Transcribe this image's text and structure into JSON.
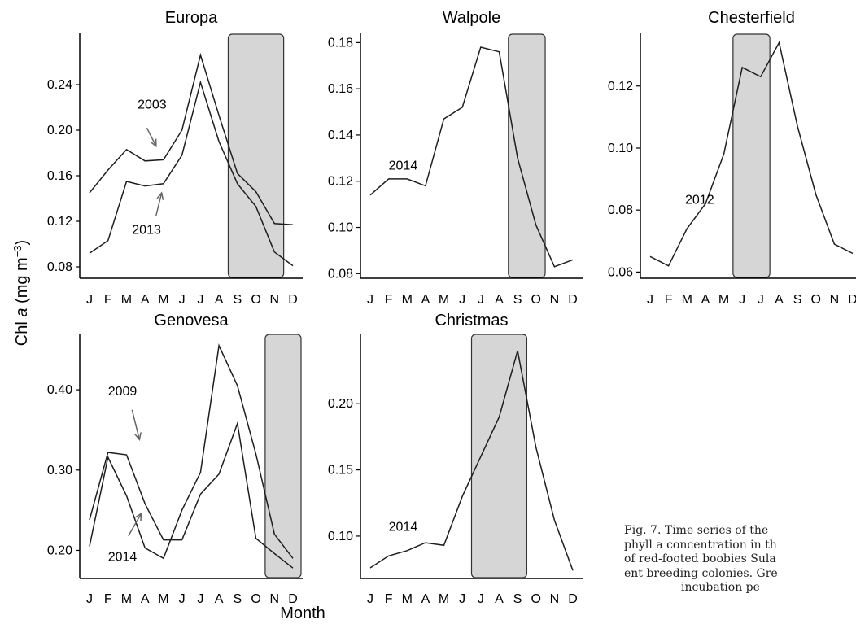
{
  "figure": {
    "ylabel_prefix": "Chl",
    "ylabel_italic": "a",
    "ylabel_suffix": " (mg m",
    "ylabel_sup": "−3",
    "ylabel_close": ")",
    "xlabel": "Month",
    "caption_lines": [
      "Fig. 7. Time series of the",
      "phyll a concentration in th",
      "of red-footed boobies Sula",
      "ent breeding colonies. Gre",
      "incubation pe"
    ]
  },
  "colors": {
    "line": "#1e1e1e",
    "band_fill": "#d6d6d6",
    "band_stroke": "#333333",
    "axis": "#000000",
    "arrow": "#666666"
  },
  "chart_data": [
    {
      "type": "line",
      "title": "Europa",
      "x": [
        "J",
        "F",
        "M",
        "A",
        "M",
        "J",
        "J",
        "A",
        "S",
        "O",
        "N",
        "D"
      ],
      "ylim": [
        0.07,
        0.285
      ],
      "yticks": [
        "0.08",
        "0.12",
        "0.16",
        "0.20",
        "0.24"
      ],
      "ytick_values": [
        0.08,
        0.12,
        0.16,
        0.2,
        0.24
      ],
      "shaded_months": [
        8,
        10
      ],
      "series": [
        {
          "name": "2003",
          "values": [
            0.145,
            0.165,
            0.183,
            0.173,
            0.174,
            0.2,
            0.266,
            0.213,
            0.162,
            0.146,
            0.118,
            0.117
          ]
        },
        {
          "name": "2013",
          "values": [
            0.092,
            0.103,
            0.155,
            0.151,
            0.153,
            0.178,
            0.242,
            0.19,
            0.153,
            0.133,
            0.093,
            0.081
          ]
        }
      ],
      "annotations": [
        {
          "text": "2003",
          "x": 2.6,
          "y": 0.219,
          "arrow_from": [
            3.1,
            0.202
          ],
          "arrow_to": [
            3.6,
            0.186
          ]
        },
        {
          "text": "2013",
          "x": 2.3,
          "y": 0.109,
          "arrow_from": [
            3.6,
            0.125
          ],
          "arrow_to": [
            3.9,
            0.145
          ]
        }
      ]
    },
    {
      "type": "line",
      "title": "Walpole",
      "x": [
        "J",
        "F",
        "M",
        "A",
        "M",
        "J",
        "J",
        "A",
        "S",
        "O",
        "N",
        "D"
      ],
      "ylim": [
        0.078,
        0.184
      ],
      "yticks": [
        "0.08",
        "0.10",
        "0.12",
        "0.14",
        "0.16",
        "0.18"
      ],
      "ytick_values": [
        0.08,
        0.1,
        0.12,
        0.14,
        0.16,
        0.18
      ],
      "shaded_months": [
        8,
        9
      ],
      "series": [
        {
          "name": "2014",
          "values": [
            0.114,
            0.121,
            0.121,
            0.118,
            0.147,
            0.152,
            0.178,
            0.176,
            0.13,
            0.101,
            0.083,
            0.086
          ]
        }
      ],
      "annotations": [
        {
          "text": "2014",
          "x": 1.0,
          "y": 0.125
        }
      ]
    },
    {
      "type": "line",
      "title": "Chesterfield",
      "x": [
        "J",
        "F",
        "M",
        "A",
        "M",
        "J",
        "J",
        "A",
        "S",
        "O",
        "N",
        "D"
      ],
      "ylim": [
        0.058,
        0.137
      ],
      "yticks": [
        "0.06",
        "0.08",
        "0.10",
        "0.12"
      ],
      "ytick_values": [
        0.06,
        0.08,
        0.1,
        0.12
      ],
      "shaded_months": [
        5,
        6
      ],
      "series": [
        {
          "name": "2012",
          "values": [
            0.065,
            0.062,
            0.074,
            0.082,
            0.098,
            0.126,
            0.123,
            0.134,
            0.107,
            0.085,
            0.069,
            0.066
          ]
        }
      ],
      "annotations": [
        {
          "text": "2012",
          "x": 1.9,
          "y": 0.082
        }
      ]
    },
    {
      "type": "line",
      "title": "Genovesa",
      "x": [
        "J",
        "F",
        "M",
        "A",
        "M",
        "J",
        "J",
        "A",
        "S",
        "O",
        "N",
        "D"
      ],
      "ylim": [
        0.165,
        0.47
      ],
      "yticks": [
        "0.20",
        "0.30",
        "0.40"
      ],
      "ytick_values": [
        0.2,
        0.3,
        0.4
      ],
      "shaded_months": [
        10,
        11
      ],
      "series": [
        {
          "name": "2009",
          "values": [
            0.238,
            0.322,
            0.319,
            0.258,
            0.213,
            0.213,
            0.27,
            0.295,
            0.358,
            0.215,
            0.196,
            0.178
          ]
        },
        {
          "name": "2014",
          "values": [
            0.205,
            0.316,
            0.268,
            0.203,
            0.19,
            0.25,
            0.297,
            0.455,
            0.405,
            0.32,
            0.22,
            0.19
          ]
        }
      ],
      "annotations": [
        {
          "text": "2009",
          "x": 1.0,
          "y": 0.393,
          "arrow_from": [
            2.3,
            0.375
          ],
          "arrow_to": [
            2.7,
            0.338
          ]
        },
        {
          "text": "2014",
          "x": 1.0,
          "y": 0.187,
          "arrow_from": [
            2.1,
            0.218
          ],
          "arrow_to": [
            2.8,
            0.246
          ]
        }
      ]
    },
    {
      "type": "line",
      "title": "Christmas",
      "x": [
        "J",
        "F",
        "M",
        "A",
        "M",
        "J",
        "J",
        "A",
        "S",
        "O",
        "N",
        "D"
      ],
      "ylim": [
        0.068,
        0.253
      ],
      "yticks": [
        "0.10",
        "0.15",
        "0.20"
      ],
      "ytick_values": [
        0.1,
        0.15,
        0.2
      ],
      "shaded_months": [
        6,
        8
      ],
      "series": [
        {
          "name": "2014",
          "values": [
            0.076,
            0.085,
            0.089,
            0.095,
            0.093,
            0.13,
            0.16,
            0.19,
            0.24,
            0.167,
            0.112,
            0.074
          ]
        }
      ],
      "annotations": [
        {
          "text": "2014",
          "x": 1.0,
          "y": 0.104
        }
      ]
    }
  ]
}
